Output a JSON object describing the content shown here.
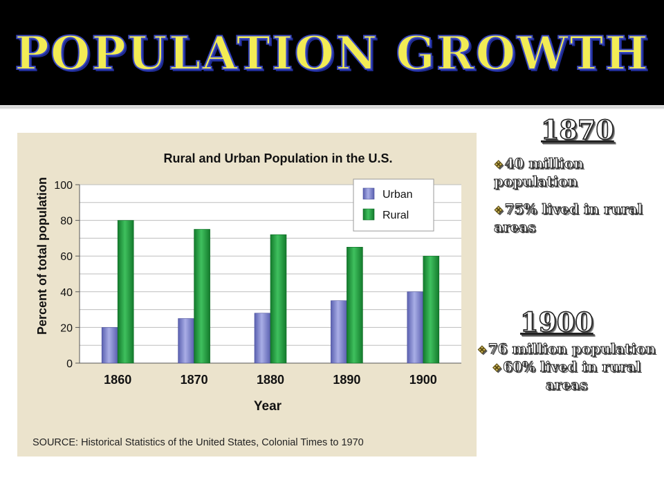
{
  "slide": {
    "title": "POPULATION GROWTH"
  },
  "panel_1870": {
    "heading": "1870",
    "facts": [
      "40 million population",
      "75% lived in rural areas"
    ]
  },
  "panel_1900": {
    "heading": "1900",
    "facts": [
      "76 million population",
      "60% lived in rural areas"
    ]
  },
  "colors": {
    "header_bg": "#000000",
    "title_fill": "#f2ec55",
    "title_outline": "#3a48c2",
    "chart_bg": "#ebe3cc",
    "urban": "#7a80c8",
    "rural": "#1e9a40"
  },
  "chart_data": {
    "type": "bar",
    "title": "Rural and Urban Population in the U.S.",
    "xlabel": "Year",
    "ylabel": "Percent of total population",
    "categories": [
      "1860",
      "1870",
      "1880",
      "1890",
      "1900"
    ],
    "series": [
      {
        "name": "Urban",
        "values": [
          20,
          25,
          28,
          35,
          40
        ]
      },
      {
        "name": "Rural",
        "values": [
          80,
          75,
          72,
          65,
          60
        ]
      }
    ],
    "ylim": [
      0,
      100
    ],
    "yticks": [
      "0",
      "20",
      "40",
      "60",
      "80",
      "100"
    ],
    "grid": true,
    "legend_position": "top-right",
    "source": "SOURCE: Historical Statistics of the United States, Colonial Times to 1970"
  }
}
